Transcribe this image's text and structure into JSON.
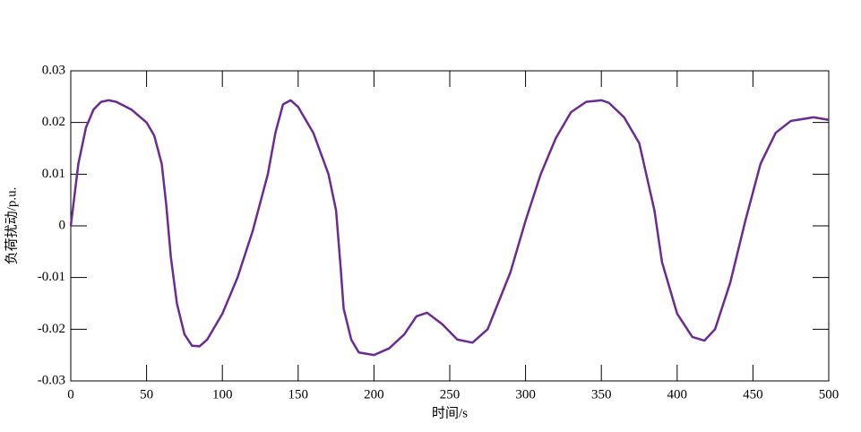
{
  "chart_data": {
    "type": "line",
    "xlabel": "时间/s",
    "ylabel": "负荷扰动/p.u.",
    "x": [
      0,
      5,
      10,
      15,
      20,
      25,
      30,
      40,
      50,
      55,
      60,
      63,
      66,
      70,
      75,
      80,
      85,
      90,
      100,
      110,
      120,
      130,
      135,
      140,
      145,
      150,
      160,
      170,
      175,
      178,
      180,
      185,
      190,
      200,
      210,
      220,
      228,
      235,
      245,
      255,
      265,
      275,
      290,
      300,
      310,
      320,
      330,
      340,
      350,
      355,
      365,
      375,
      385,
      390,
      400,
      410,
      418,
      425,
      435,
      445,
      455,
      465,
      475,
      490,
      500
    ],
    "series": [
      {
        "color": "#6a2c91",
        "values": [
          0,
          0.012,
          0.019,
          0.0225,
          0.024,
          0.0243,
          0.024,
          0.0225,
          0.02,
          0.0175,
          0.012,
          0.004,
          -0.006,
          -0.015,
          -0.021,
          -0.0232,
          -0.0233,
          -0.022,
          -0.017,
          -0.01,
          -0.001,
          0.01,
          0.018,
          0.0235,
          0.0243,
          0.023,
          0.018,
          0.01,
          0.003,
          -0.008,
          -0.016,
          -0.022,
          -0.0245,
          -0.025,
          -0.0237,
          -0.021,
          -0.0175,
          -0.0168,
          -0.019,
          -0.022,
          -0.0226,
          -0.02,
          -0.009,
          0.001,
          0.01,
          0.017,
          0.022,
          0.024,
          0.0243,
          0.0238,
          0.021,
          0.016,
          0.003,
          -0.007,
          -0.017,
          -0.0215,
          -0.0222,
          -0.02,
          -0.011,
          0.001,
          0.012,
          0.018,
          0.0203,
          0.021,
          0.0205
        ]
      }
    ],
    "xlim": [
      0,
      500
    ],
    "xticks": [
      0,
      50,
      100,
      150,
      200,
      250,
      300,
      350,
      400,
      450,
      500
    ],
    "ylim": [
      -0.03,
      0.03
    ],
    "yticks": [
      -0.03,
      -0.02,
      -0.01,
      0,
      0.01,
      0.02,
      0.03
    ]
  }
}
